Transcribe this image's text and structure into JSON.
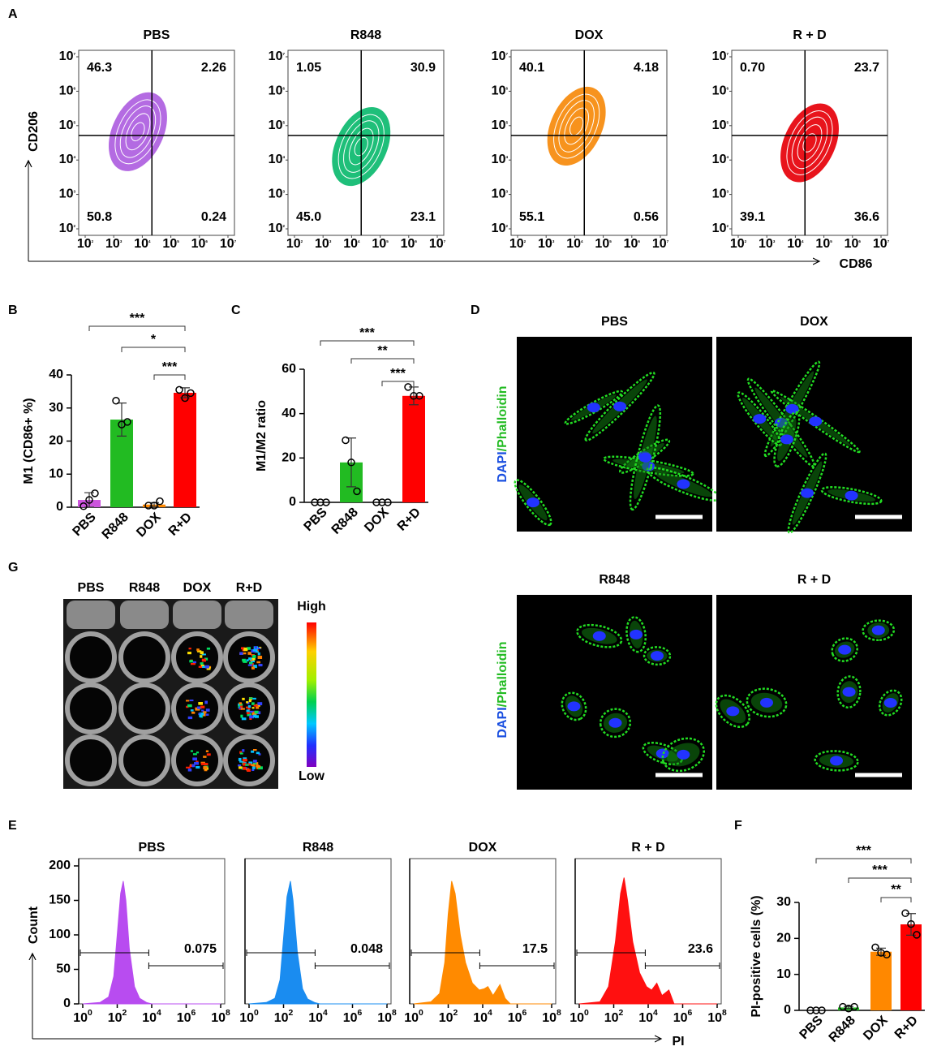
{
  "panel_A": {
    "label": "A",
    "y_axis_label": "CD206",
    "x_axis_label": "CD86",
    "tick_base": "10",
    "ticks": [
      2,
      3,
      4,
      5,
      6,
      7
    ],
    "plots": [
      {
        "title": "PBS",
        "color": "#b46be2",
        "quadrants": [
          "46.3",
          "2.26",
          "50.8",
          "0.24"
        ]
      },
      {
        "title": "R848",
        "color": "#1fbf7a",
        "quadrants": [
          "1.05",
          "30.9",
          "45.0",
          "23.1"
        ]
      },
      {
        "title": "DOX",
        "color": "#f7931e",
        "quadrants": [
          "40.1",
          "4.18",
          "55.1",
          "0.56"
        ]
      },
      {
        "title": "R + D",
        "color": "#e8141c",
        "quadrants": [
          "0.70",
          "23.7",
          "39.1",
          "36.6"
        ]
      }
    ]
  },
  "panel_D": {
    "label": "D",
    "stain": [
      "DAPI",
      "/Phalloidin"
    ],
    "images": [
      "PBS",
      "DOX",
      "R848",
      "R + D"
    ]
  },
  "panel_G": {
    "label": "G",
    "columns": [
      "PBS",
      "R848",
      "DOX",
      "R+D"
    ],
    "scale_high": "High",
    "scale_low": "Low"
  },
  "panel_E": {
    "label": "E",
    "y_axis_label": "Count",
    "x_axis_label": "PI",
    "tick_base": "10"
  },
  "chart_data": [
    {
      "type": "bar",
      "panel": "B",
      "y_axis_label": "M1 (CD86+ %)",
      "categories": [
        "PBS",
        "R848",
        "DOX",
        "R+D"
      ],
      "values": [
        2.2,
        26.5,
        0.8,
        34.6
      ],
      "errors": [
        2.2,
        5,
        0.6,
        1.5
      ],
      "points": [
        [
          0.3,
          2.2,
          4.2
        ],
        [
          32.2,
          25,
          25.8
        ],
        [
          0.5,
          0.5,
          1.8
        ],
        [
          35.5,
          33,
          34.5
        ]
      ],
      "colors": [
        "#cc55dd",
        "#22bb22",
        "#ff8800",
        "#ff0000"
      ],
      "ylim": [
        0,
        40
      ],
      "yticks": [
        0,
        10,
        20,
        30,
        40
      ],
      "significance": [
        "***",
        "*",
        "***"
      ]
    },
    {
      "type": "bar",
      "panel": "C",
      "y_axis_label": "M1/M2 ratio",
      "categories": [
        "PBS",
        "R848",
        "DOX",
        "R+D"
      ],
      "values": [
        0,
        18,
        0,
        48
      ],
      "errors": [
        0,
        11,
        0,
        4
      ],
      "points": [
        [
          0,
          0,
          0
        ],
        [
          28,
          18,
          5
        ],
        [
          0,
          0,
          0
        ],
        [
          52,
          48,
          48
        ]
      ],
      "colors": [
        "#cc55dd",
        "#22bb22",
        "#ff8800",
        "#ff0000"
      ],
      "ylim": [
        0,
        60
      ],
      "yticks": [
        0,
        20,
        40,
        60
      ],
      "significance": [
        "***",
        "**",
        "***"
      ]
    },
    {
      "type": "area",
      "title": "PBS",
      "color": "#b84cf0",
      "x": [
        0,
        1,
        1.5,
        1.8,
        2,
        2.2,
        2.35,
        2.5,
        2.7,
        3,
        3.3,
        3.7,
        4,
        8
      ],
      "values": [
        0,
        2,
        10,
        40,
        100,
        160,
        178,
        150,
        80,
        25,
        8,
        2,
        0,
        0
      ],
      "xlim": [
        0,
        8
      ],
      "xticks": [
        0,
        2,
        4,
        6,
        8
      ],
      "ylim": [
        0,
        200
      ],
      "yticks": [
        0,
        50,
        100,
        150,
        200
      ],
      "gate_label": "0.075"
    },
    {
      "type": "area",
      "title": "R848",
      "color": "#1a8cf0",
      "x": [
        0,
        1,
        1.5,
        1.8,
        2,
        2.2,
        2.4,
        2.55,
        2.8,
        3.1,
        3.4,
        3.8,
        4.1,
        8
      ],
      "values": [
        0,
        2,
        8,
        35,
        95,
        155,
        178,
        150,
        75,
        22,
        7,
        2,
        0,
        0
      ],
      "xlim": [
        0,
        8
      ],
      "xticks": [
        0,
        2,
        4,
        6,
        8
      ],
      "ylim": [
        0,
        200
      ],
      "gate_label": "0.048"
    },
    {
      "type": "area",
      "title": "DOX",
      "color": "#ff8a00",
      "x": [
        0,
        1,
        1.5,
        1.8,
        2,
        2.2,
        2.4,
        2.7,
        3,
        3.4,
        3.8,
        4.1,
        4.3,
        4.6,
        5,
        5.3,
        5.6,
        8
      ],
      "values": [
        0,
        3,
        15,
        60,
        130,
        178,
        160,
        100,
        60,
        30,
        20,
        22,
        25,
        12,
        28,
        8,
        0,
        0
      ],
      "xlim": [
        0,
        8
      ],
      "xticks": [
        0,
        2,
        4,
        6,
        8
      ],
      "ylim": [
        0,
        200
      ],
      "gate_label": "17.5"
    },
    {
      "type": "area",
      "title": "R + D",
      "color": "#ff1010",
      "x": [
        0,
        1.2,
        1.7,
        2.1,
        2.4,
        2.6,
        2.8,
        3.1,
        3.5,
        3.9,
        4.2,
        4.5,
        4.8,
        5.2,
        5.5,
        8
      ],
      "values": [
        0,
        3,
        25,
        90,
        160,
        183,
        150,
        90,
        45,
        25,
        20,
        30,
        12,
        20,
        0,
        0
      ],
      "xlim": [
        0,
        8
      ],
      "xticks": [
        0,
        2,
        4,
        6,
        8
      ],
      "ylim": [
        0,
        200
      ],
      "gate_label": "23.6"
    },
    {
      "type": "bar",
      "panel": "F",
      "y_axis_label": "PI-positive cells  (%)",
      "categories": [
        "PBS",
        "R848",
        "DOX",
        "R+D"
      ],
      "values": [
        0,
        0.8,
        16.3,
        23.9
      ],
      "errors": [
        0,
        0.3,
        1,
        3
      ],
      "points": [
        [
          0,
          0,
          0
        ],
        [
          1,
          0.5,
          1
        ],
        [
          17.5,
          16,
          15.5
        ],
        [
          27,
          24,
          21
        ]
      ],
      "colors": [
        "#cc55dd",
        "#22bb22",
        "#ff8800",
        "#ff0000"
      ],
      "ylim": [
        0,
        30
      ],
      "yticks": [
        0,
        10,
        20,
        30
      ],
      "significance": [
        "***",
        "***",
        "**"
      ]
    }
  ]
}
